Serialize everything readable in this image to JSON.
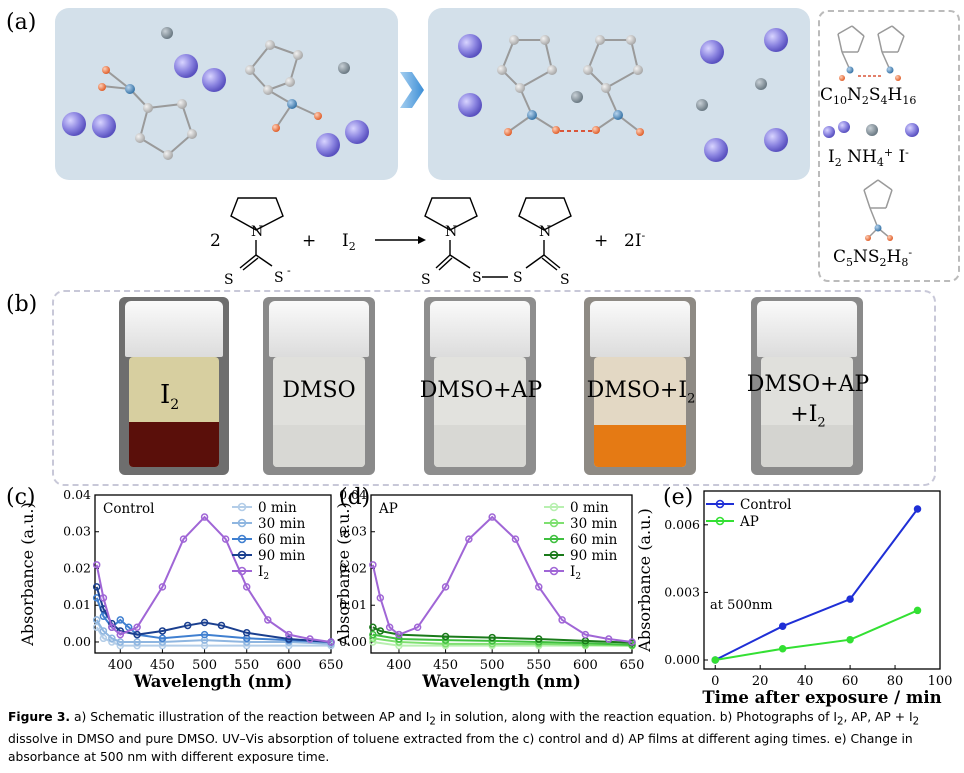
{
  "panel_labels": {
    "a": "(a)",
    "b": "(b)",
    "c": "(c)",
    "d": "(d)",
    "e": "(e)"
  },
  "schematic": {
    "legend_formula_1": "C10N2S4H16",
    "legend_formula_2": "C5NS2H8-",
    "legend_ions": "I2 NH4+ I-",
    "reaction": {
      "coef_left": "2",
      "plus_1": "+",
      "reagent": "I2",
      "plus_2": "+",
      "product_ion": "2I-",
      "atom_S": "S",
      "atom_N": "N",
      "charge": "-"
    },
    "colors": {
      "panel_bg": "#d3e0ea",
      "iodine": "#8a83e0",
      "ammonium": "#7d8b95",
      "oxygen_like": "#e86a3c",
      "nitrogen_like": "#4b86b4",
      "carbon": "#c8c8c8"
    }
  },
  "photos": [
    {
      "label": "I2",
      "liquid": "#5a0f0a",
      "tint": "#d7cfa0"
    },
    {
      "label": "DMSO",
      "liquid": "#d8d8d4",
      "tint": "#e0e0dc"
    },
    {
      "label": "DMSO+AP",
      "liquid": "#d8d8d4",
      "tint": "#e2e2de"
    },
    {
      "label": "DMSO+I2",
      "liquid": "#e57a14",
      "tint": "#e3d8c4"
    },
    {
      "label_line1": "DMSO+AP",
      "label_line2": "+I2",
      "liquid": "#d4d4d0",
      "tint": "#e0e0dc"
    }
  ],
  "chart_data": [
    {
      "type": "line",
      "panel": "c",
      "title": "Control",
      "xlabel": "Wavelength (nm)",
      "ylabel": "Absorbance (a.u.)",
      "xlim": [
        370,
        650
      ],
      "ylim": [
        -0.003,
        0.04
      ],
      "xticks": [
        400,
        450,
        500,
        550,
        600,
        650
      ],
      "yticks": [
        0.0,
        0.01,
        0.02,
        0.03,
        0.04
      ],
      "ytick_labels": [
        "0.00",
        "0.01",
        "0.02",
        "0.03",
        "0.04"
      ],
      "legend": "top-right",
      "series": [
        {
          "name": "0 min",
          "color": "#b3cde8",
          "x": [
            372,
            380,
            390,
            400,
            420,
            450,
            500,
            550,
            600,
            650
          ],
          "y": [
            0.004,
            0.001,
            0.0,
            -0.001,
            -0.001,
            -0.001,
            -0.001,
            -0.001,
            -0.001,
            -0.001
          ]
        },
        {
          "name": "30 min",
          "color": "#8fb6e0",
          "x": [
            372,
            380,
            390,
            400,
            420,
            450,
            500,
            550,
            600,
            650
          ],
          "y": [
            0.006,
            0.003,
            0.001,
            0.0,
            0.0,
            0.0,
            0.0005,
            0.0,
            0.0,
            -0.0005
          ]
        },
        {
          "name": "60 min",
          "color": "#3f7fd0",
          "x": [
            372,
            380,
            390,
            400,
            410,
            420,
            450,
            500,
            550,
            600,
            650
          ],
          "y": [
            0.012,
            0.007,
            0.004,
            0.006,
            0.004,
            0.002,
            0.001,
            0.002,
            0.001,
            0.0005,
            0.0
          ]
        },
        {
          "name": "90 min",
          "color": "#1a3f8f",
          "x": [
            372,
            380,
            390,
            400,
            420,
            450,
            480,
            500,
            520,
            550,
            600,
            650
          ],
          "y": [
            0.015,
            0.009,
            0.005,
            0.003,
            0.002,
            0.003,
            0.0045,
            0.0053,
            0.0045,
            0.0025,
            0.0008,
            0.0
          ]
        },
        {
          "name": "I2",
          "color": "#a066d6",
          "x": [
            372,
            380,
            390,
            400,
            420,
            450,
            475,
            500,
            525,
            550,
            575,
            600,
            625,
            650
          ],
          "y": [
            0.021,
            0.012,
            0.004,
            0.002,
            0.004,
            0.015,
            0.028,
            0.034,
            0.028,
            0.015,
            0.006,
            0.002,
            0.0008,
            0.0
          ]
        }
      ]
    },
    {
      "type": "line",
      "panel": "d",
      "title": "AP",
      "xlabel": "Wavelength (nm)",
      "ylabel": "Absorbance (a.u.)",
      "xlim": [
        370,
        650
      ],
      "ylim": [
        -0.003,
        0.04
      ],
      "xticks": [
        400,
        450,
        500,
        550,
        600,
        650
      ],
      "yticks": [
        0.0,
        0.01,
        0.02,
        0.03,
        0.04
      ],
      "ytick_labels": [
        "0.00",
        "0.01",
        "0.02",
        "0.03",
        "0.04"
      ],
      "legend": "top-right",
      "series": [
        {
          "name": "0 min",
          "color": "#b8f0b0",
          "x": [
            372,
            400,
            450,
            500,
            550,
            600,
            650
          ],
          "y": [
            0.0,
            -0.001,
            -0.001,
            -0.001,
            -0.001,
            -0.001,
            -0.001
          ]
        },
        {
          "name": "30 min",
          "color": "#7ee070",
          "x": [
            372,
            400,
            450,
            500,
            550,
            600,
            650
          ],
          "y": [
            0.001,
            0.0,
            -0.0005,
            -0.0005,
            -0.0005,
            -0.0008,
            -0.001
          ]
        },
        {
          "name": "60 min",
          "color": "#3fbf3f",
          "x": [
            372,
            400,
            450,
            500,
            550,
            600,
            650
          ],
          "y": [
            0.002,
            0.0008,
            0.0005,
            0.0003,
            0.0,
            -0.0003,
            -0.0008
          ]
        },
        {
          "name": "90 min",
          "color": "#1a7a1a",
          "x": [
            372,
            380,
            400,
            450,
            500,
            550,
            600,
            650
          ],
          "y": [
            0.004,
            0.003,
            0.002,
            0.0015,
            0.0012,
            0.0008,
            0.0003,
            -0.0002
          ]
        },
        {
          "name": "I2",
          "color": "#a066d6",
          "x": [
            372,
            380,
            390,
            400,
            420,
            450,
            475,
            500,
            525,
            550,
            575,
            600,
            625,
            650
          ],
          "y": [
            0.021,
            0.012,
            0.004,
            0.002,
            0.004,
            0.015,
            0.028,
            0.034,
            0.028,
            0.015,
            0.006,
            0.002,
            0.0008,
            0.0
          ]
        }
      ]
    },
    {
      "type": "line",
      "panel": "e",
      "annotation": "at 500nm",
      "xlabel": "Time after exposure / min",
      "ylabel": "Absorbance (a.u.)",
      "xlim": [
        -5,
        100
      ],
      "ylim": [
        -0.0004,
        0.0075
      ],
      "xticks": [
        0,
        20,
        40,
        60,
        80,
        100
      ],
      "yticks": [
        0.0,
        0.003,
        0.006
      ],
      "ytick_labels": [
        "0.000",
        "0.003",
        "0.006"
      ],
      "legend": "top-left",
      "series": [
        {
          "name": "Control",
          "color": "#1f2fd6",
          "x": [
            0,
            30,
            60,
            90
          ],
          "y": [
            0.0,
            0.0015,
            0.0027,
            0.0067
          ]
        },
        {
          "name": "AP",
          "color": "#33e033",
          "x": [
            0,
            30,
            60,
            90
          ],
          "y": [
            0.0,
            0.0005,
            0.0009,
            0.0022
          ]
        }
      ]
    }
  ],
  "caption": {
    "lead": "Figure 3.",
    "text": "a) Schematic illustration of the reaction between AP and I2 in solution, along with the reaction equation. b) Photographs of I2, AP, AP + I2 dissolve in DMSO and pure DMSO. UV–Vis absorption of toluene extracted from the c) control and d) AP films at different aging times. e) Change in absorbance at 500 nm with different exposure time."
  }
}
